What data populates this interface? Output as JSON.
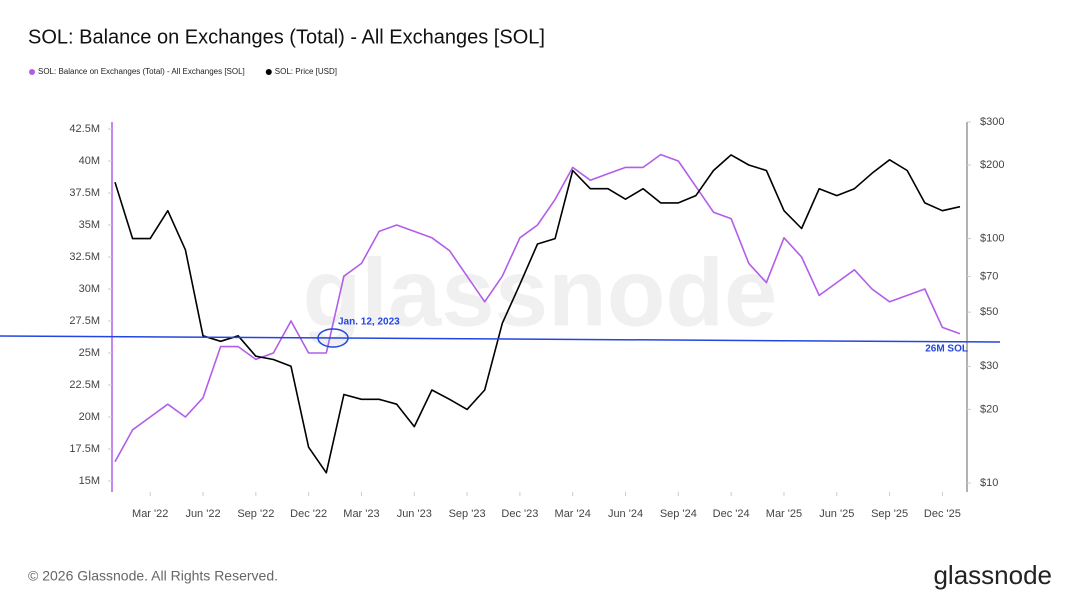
{
  "chart_data": {
    "type": "line",
    "title": "SOL: Balance on Exchanges (Total) - All Exchanges [SOL]",
    "x": [
      "2022-01",
      "2022-02",
      "2022-03",
      "2022-04",
      "2022-05",
      "2022-06",
      "2022-07",
      "2022-08",
      "2022-09",
      "2022-10",
      "2022-11",
      "2022-12",
      "2023-01",
      "2023-02",
      "2023-03",
      "2023-04",
      "2023-05",
      "2023-06",
      "2023-07",
      "2023-08",
      "2023-09",
      "2023-10",
      "2023-11",
      "2023-12",
      "2024-01",
      "2024-02",
      "2024-03",
      "2024-04",
      "2024-05",
      "2024-06",
      "2024-07",
      "2024-08",
      "2024-09",
      "2024-10",
      "2024-11",
      "2024-12",
      "2025-01",
      "2025-02",
      "2025-03",
      "2025-04",
      "2025-05",
      "2025-06",
      "2025-07",
      "2025-08",
      "2025-09",
      "2025-10",
      "2025-11",
      "2025-12",
      "2026-01"
    ],
    "xlim": [
      "2022-01",
      "2026-01"
    ],
    "xticks": [
      {
        "value": "2022-03",
        "label": "Mar '22"
      },
      {
        "value": "2022-06",
        "label": "Jun '22"
      },
      {
        "value": "2022-09",
        "label": "Sep '22"
      },
      {
        "value": "2022-12",
        "label": "Dec '22"
      },
      {
        "value": "2023-03",
        "label": "Mar '23"
      },
      {
        "value": "2023-06",
        "label": "Jun '23"
      },
      {
        "value": "2023-09",
        "label": "Sep '23"
      },
      {
        "value": "2023-12",
        "label": "Dec '23"
      },
      {
        "value": "2024-03",
        "label": "Mar '24"
      },
      {
        "value": "2024-06",
        "label": "Jun '24"
      },
      {
        "value": "2024-09",
        "label": "Sep '24"
      },
      {
        "value": "2024-12",
        "label": "Dec '24"
      },
      {
        "value": "2025-03",
        "label": "Mar '25"
      },
      {
        "value": "2025-06",
        "label": "Jun '25"
      },
      {
        "value": "2025-09",
        "label": "Sep '25"
      },
      {
        "value": "2025-12",
        "label": "Dec '25"
      }
    ],
    "series": [
      {
        "name": "SOL: Balance on Exchanges (Total) - All Exchanges [SOL]",
        "color": "#b25ee8",
        "values": [
          16500000,
          19000000,
          20000000,
          21000000,
          20000000,
          21500000,
          25500000,
          25500000,
          24500000,
          25000000,
          27500000,
          25000000,
          25000000,
          31000000,
          32000000,
          34500000,
          35000000,
          34500000,
          34000000,
          33000000,
          31000000,
          29000000,
          31000000,
          34000000,
          35000000,
          37000000,
          39500000,
          38500000,
          39000000,
          39500000,
          39500000,
          40500000,
          40000000,
          38000000,
          36000000,
          35500000,
          32000000,
          30500000,
          34000000,
          32500000,
          29500000,
          30500000,
          31500000,
          30000000,
          29000000,
          29500000,
          30000000,
          27000000,
          26500000
        ]
      },
      {
        "name": "SOL: Price [USD]",
        "color": "#000000",
        "axis": "y2",
        "values": [
          170,
          100,
          100,
          130,
          90,
          40,
          38,
          40,
          33,
          32,
          30,
          14,
          11,
          23,
          22,
          22,
          21,
          17,
          24,
          22,
          20,
          24,
          45,
          65,
          95,
          100,
          190,
          160,
          160,
          145,
          160,
          140,
          140,
          150,
          190,
          220,
          200,
          190,
          130,
          110,
          160,
          150,
          160,
          185,
          210,
          190,
          140,
          130,
          135
        ]
      }
    ],
    "ylim": [
      14140000,
      43050000
    ],
    "yticks": [
      {
        "value": 15000000,
        "label": "15M"
      },
      {
        "value": 17500000,
        "label": "17.5M"
      },
      {
        "value": 20000000,
        "label": "20M"
      },
      {
        "value": 22500000,
        "label": "22.5M"
      },
      {
        "value": 25000000,
        "label": "25M"
      },
      {
        "value": 27500000,
        "label": "27.5M"
      },
      {
        "value": 30000000,
        "label": "30M"
      },
      {
        "value": 32500000,
        "label": "32.5M"
      },
      {
        "value": 35000000,
        "label": "35M"
      },
      {
        "value": 37500000,
        "label": "37.5M"
      },
      {
        "value": 40000000,
        "label": "40M"
      },
      {
        "value": 42500000,
        "label": "42.5M"
      }
    ],
    "y2lim": [
      9.18,
      300
    ],
    "y2log": true,
    "y2ticks": [
      {
        "value": 10,
        "label": "$10"
      },
      {
        "value": 20,
        "label": "$20"
      },
      {
        "value": 30,
        "label": "$30"
      },
      {
        "value": 50,
        "label": "$50"
      },
      {
        "value": 70,
        "label": "$70"
      },
      {
        "value": 100,
        "label": "$100"
      },
      {
        "value": 200,
        "label": "$200"
      },
      {
        "value": 300,
        "label": "$300"
      }
    ],
    "grid": false,
    "annotations": [
      "Jan. 12, 2023",
      "26M SOL"
    ],
    "watermark": "glassnode",
    "footer": "© 2026 Glassnode. All Rights Reserved.",
    "logo": "glassnode"
  }
}
